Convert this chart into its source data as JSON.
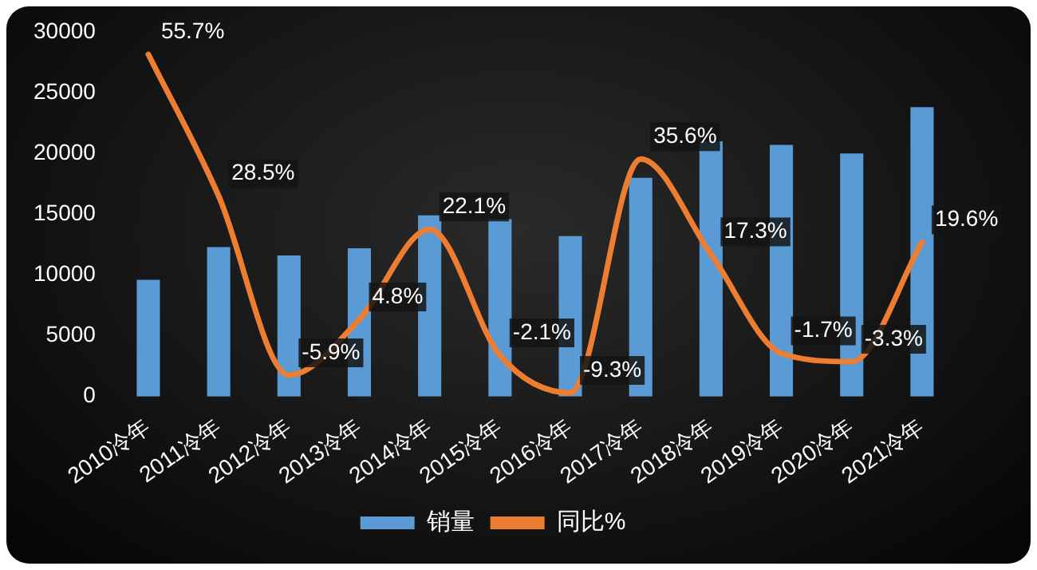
{
  "chart_data": {
    "type": "bar",
    "categories": [
      "2010冷年",
      "2011冷年",
      "2012冷年",
      "2013冷年",
      "2014冷年",
      "2015冷年",
      "2016冷年",
      "2017冷年",
      "2018冷年",
      "2019冷年",
      "2020冷年",
      "2021冷年"
    ],
    "series": [
      {
        "name": "销量",
        "color": "#5b9bd5",
        "values": [
          9600,
          12300,
          11600,
          12200,
          14900,
          14600,
          13200,
          18000,
          21000,
          20700,
          20000,
          23800
        ]
      },
      {
        "name": "同比%",
        "type": "line",
        "axis": "y2",
        "color": "#ed7d31",
        "values": [
          55.7,
          28.5,
          -5.9,
          4.8,
          22.1,
          -2.1,
          -9.3,
          35.6,
          17.3,
          -1.7,
          -3.3,
          19.6
        ],
        "value_labels": [
          "55.7%",
          "28.5%",
          "-5.9%",
          "4.8%",
          "22.1%",
          "-2.1%",
          "-9.3%",
          "35.6%",
          "17.3%",
          "-1.7%",
          "-3.3%",
          "19.6%"
        ]
      }
    ],
    "ylim": [
      0,
      30000
    ],
    "yticks": [
      0,
      5000,
      10000,
      15000,
      20000,
      25000,
      30000
    ],
    "grid": false,
    "legend": "bottom",
    "marker": "none"
  }
}
